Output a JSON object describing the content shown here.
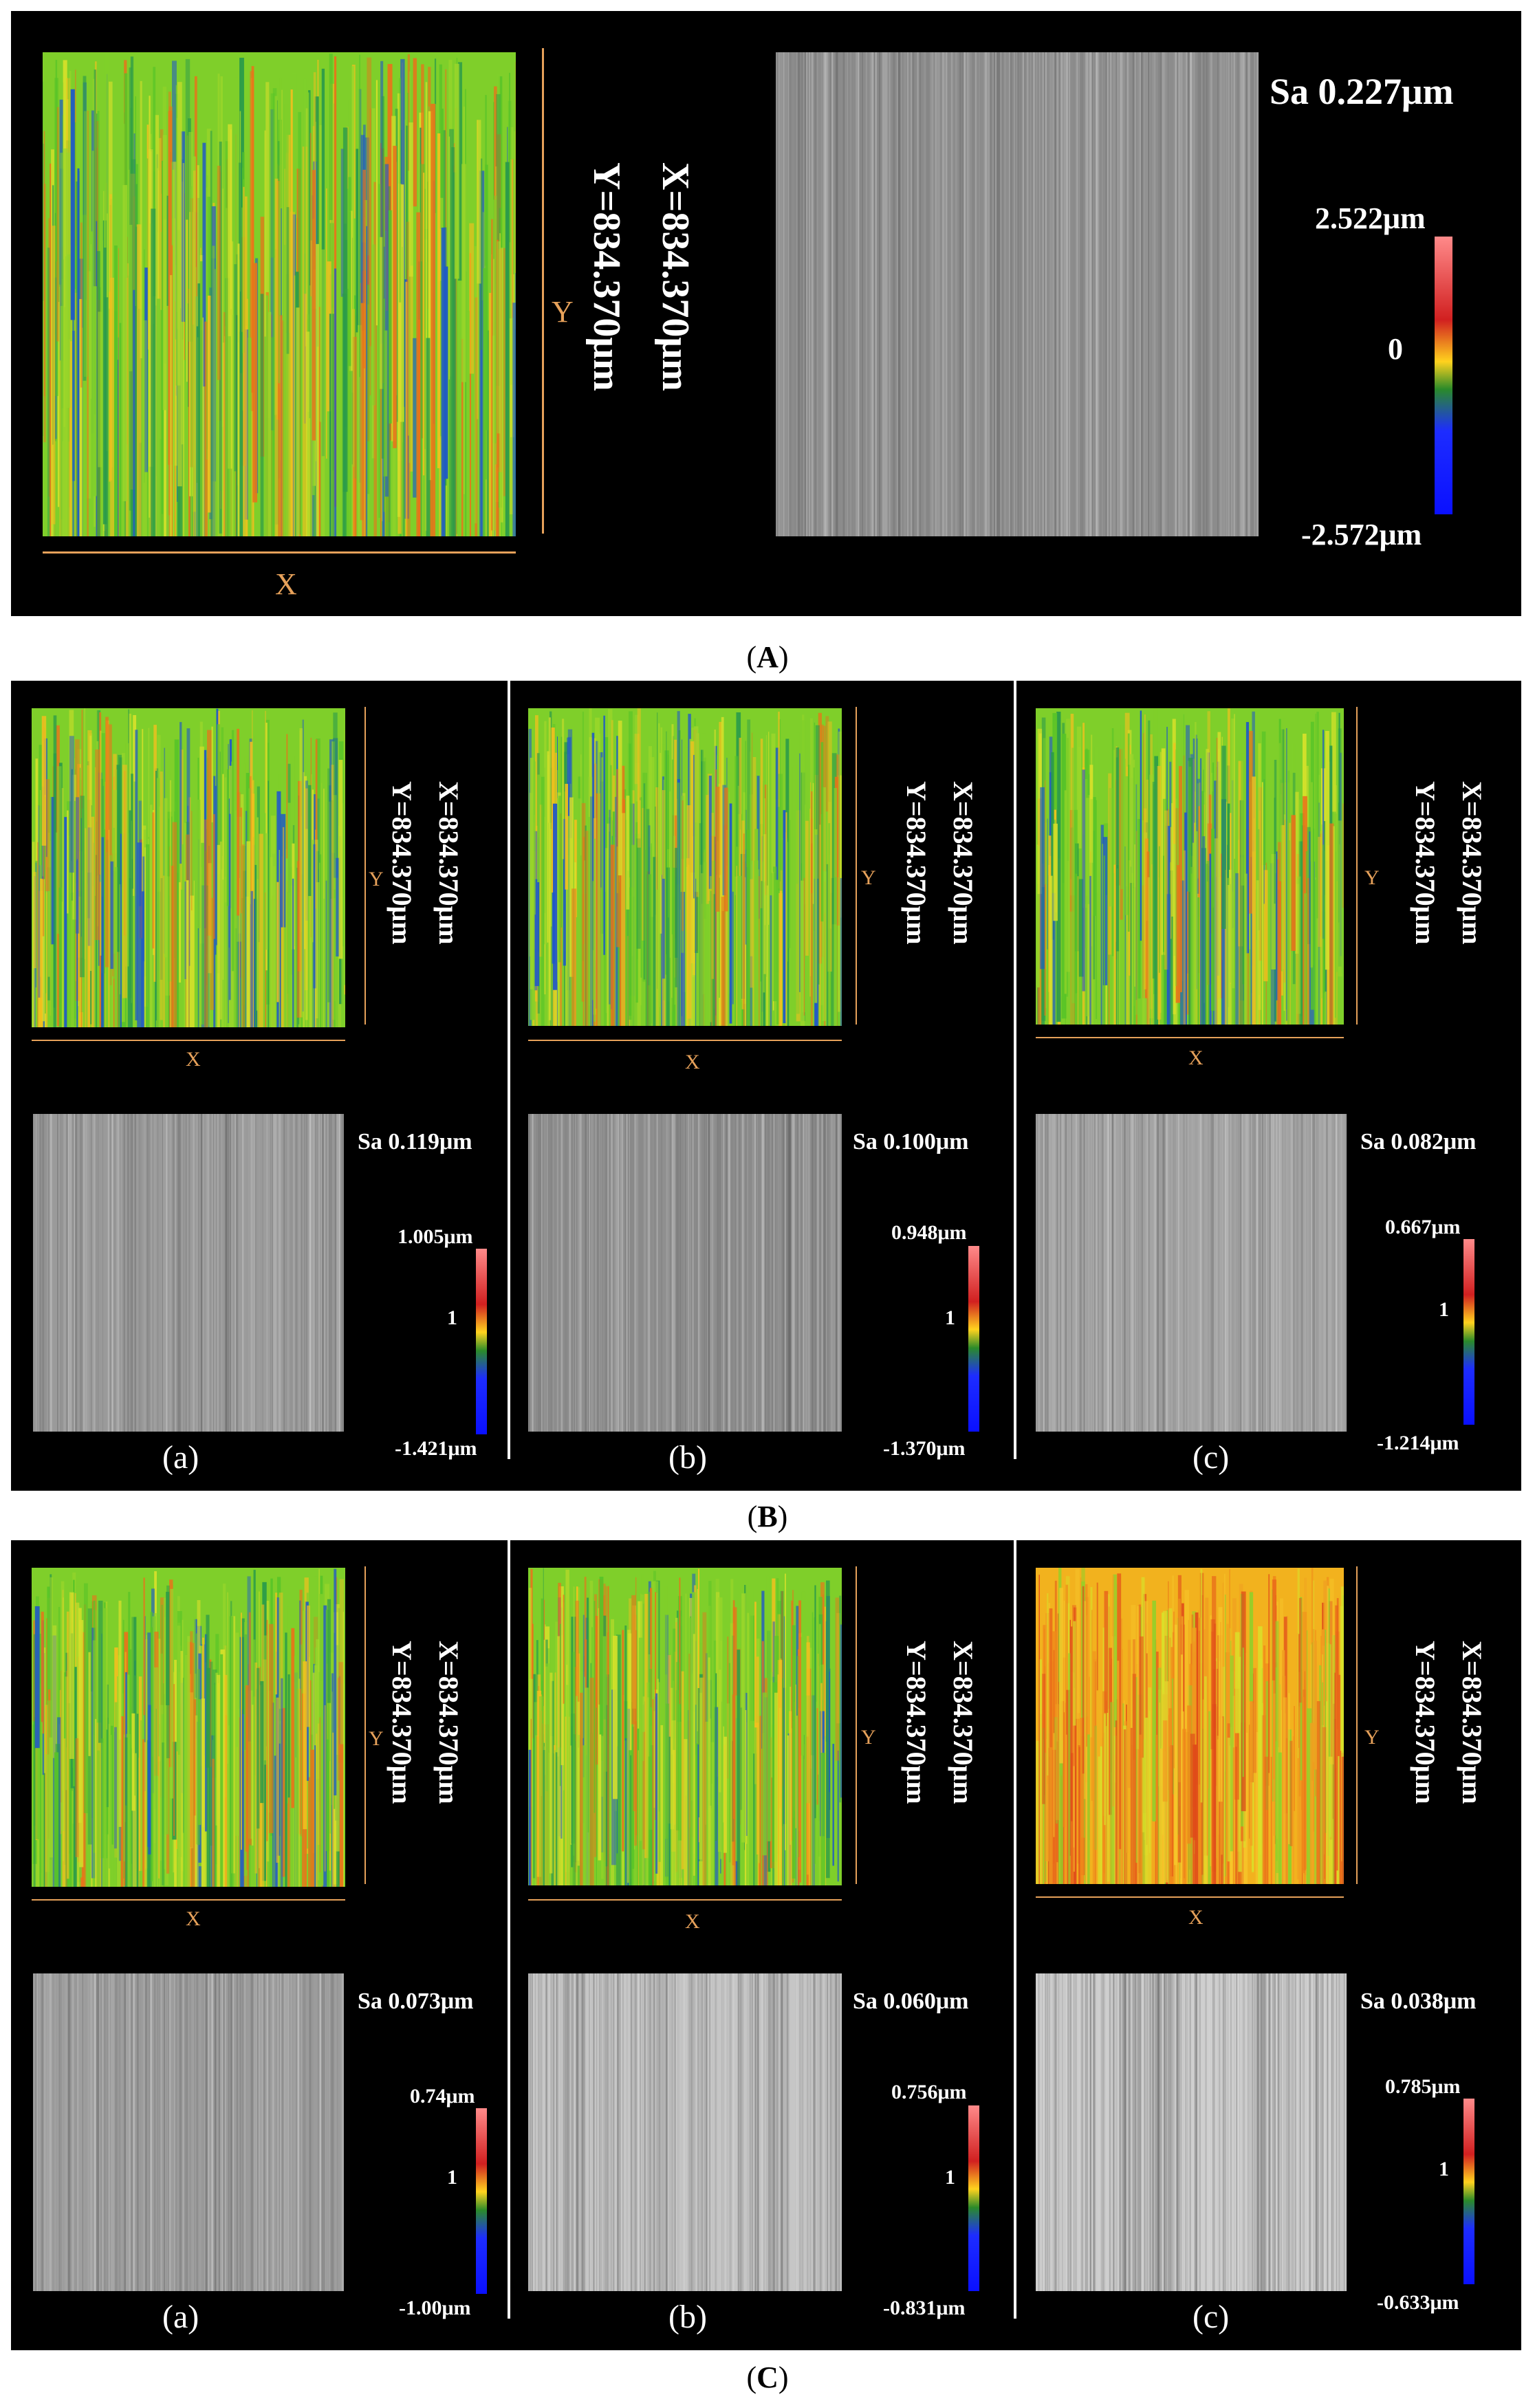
{
  "figure": {
    "panels": [
      {
        "id": "A",
        "caption": "A",
        "x_label": "X",
        "y_label": "Y",
        "dimension_x": "X=834.370μm",
        "dimension_y": "Y=834.370μm",
        "sa": "Sa 0.227μm",
        "scale_max": "2.522μm",
        "scale_mid": "0",
        "scale_min": "-2.572μm"
      },
      {
        "id": "B",
        "caption": "B",
        "subpanels": [
          {
            "label": "(a)",
            "x_label": "X",
            "y_label": "Y",
            "dimension_x": "X=834.370μm",
            "dimension_y": "Y=834.370μm",
            "sa": "Sa 0.119μm",
            "scale_max": "1.005μm",
            "scale_mid": "1",
            "scale_min": "-1.421μm"
          },
          {
            "label": "(b)",
            "x_label": "X",
            "y_label": "Y",
            "dimension_x": "X=834.370μm",
            "dimension_y": "Y=834.370μm",
            "sa": "Sa 0.100μm",
            "scale_max": "0.948μm",
            "scale_mid": "1",
            "scale_min": "-1.370μm"
          },
          {
            "label": "(c)",
            "x_label": "X",
            "y_label": "Y",
            "dimension_x": "X=834.370μm",
            "dimension_y": "Y=834.370μm",
            "sa": "Sa 0.082μm",
            "scale_max": "0.667μm",
            "scale_mid": "1",
            "scale_min": "-1.214μm"
          }
        ]
      },
      {
        "id": "C",
        "caption": "C",
        "subpanels": [
          {
            "label": "(a)",
            "x_label": "X",
            "y_label": "Y",
            "dimension_x": "X=834.370μm",
            "dimension_y": "Y=834.370μm",
            "sa": "Sa 0.073μm",
            "scale_max": "0.74μm",
            "scale_mid": "1",
            "scale_min": "-1.00μm"
          },
          {
            "label": "(b)",
            "x_label": "X",
            "y_label": "Y",
            "dimension_x": "X=834.370μm",
            "dimension_y": "Y=834.370μm",
            "sa": "Sa 0.060μm",
            "scale_max": "0.756μm",
            "scale_mid": "1",
            "scale_min": "-0.831μm"
          },
          {
            "label": "(c)",
            "x_label": "X",
            "y_label": "Y",
            "dimension_x": "X=834.370μm",
            "dimension_y": "Y=834.370μm",
            "sa": "Sa 0.038μm",
            "scale_max": "0.785μm",
            "scale_mid": "1",
            "scale_min": "-0.633μm"
          }
        ]
      }
    ]
  }
}
